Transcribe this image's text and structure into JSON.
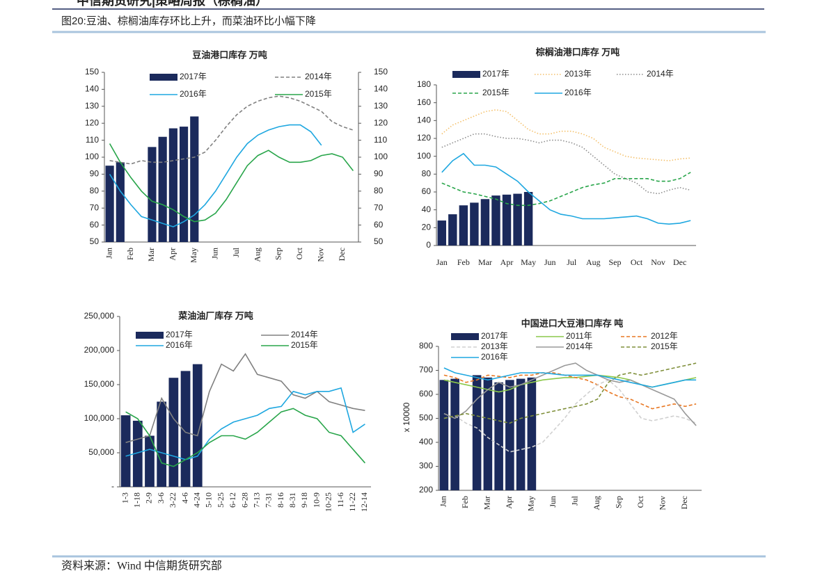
{
  "header": "中信期货研究|策略周报（棕榈油）",
  "caption": "图20:豆油、棕榈油库存环比上升，而菜油环比小幅下降",
  "source": "资料来源：Wind 中信期货研究部",
  "chart_data": [
    {
      "type": "bar-line",
      "title": "豆油港口库存 万吨",
      "categories": [
        "Jan",
        null,
        "Feb",
        null,
        "Mar",
        null,
        "Apr",
        null,
        "May",
        null,
        "Jun",
        null,
        "Jul",
        null,
        "Aug",
        null,
        "Sep",
        null,
        "Oct",
        null,
        "Nov",
        null,
        "Dec",
        null
      ],
      "ylim": [
        50,
        150
      ],
      "yticks": [
        50,
        60,
        70,
        80,
        90,
        100,
        110,
        120,
        130,
        140,
        150
      ],
      "y2lim": [
        50,
        150
      ],
      "y2ticks": [
        50,
        60,
        70,
        80,
        90,
        100,
        110,
        120,
        130,
        140,
        150
      ],
      "series": [
        {
          "name": "2017年",
          "type": "bar",
          "color": "#1b2a5c",
          "values": [
            95,
            97,
            null,
            null,
            106,
            112,
            117,
            118,
            124,
            null,
            null,
            null,
            null,
            null,
            null,
            null,
            null,
            null,
            null,
            null,
            null,
            null,
            null,
            null
          ]
        },
        {
          "name": "2014年",
          "type": "line",
          "dash": "dashed",
          "color": "#808080",
          "values": [
            98,
            97,
            96,
            98,
            97,
            97,
            98,
            99,
            100,
            103,
            110,
            118,
            125,
            130,
            133,
            135,
            136,
            135,
            133,
            130,
            127,
            121,
            118,
            116
          ]
        },
        {
          "name": "2016年",
          "type": "line",
          "dash": "solid",
          "color": "#1ea7e0",
          "values": [
            90,
            80,
            72,
            65,
            63,
            61,
            59,
            62,
            66,
            72,
            80,
            90,
            100,
            108,
            113,
            116,
            118,
            119,
            119,
            115,
            107,
            null,
            null,
            null
          ]
        },
        {
          "name": "2015年",
          "type": "line",
          "dash": "solid",
          "color": "#28a54a",
          "values": [
            108,
            97,
            88,
            80,
            74,
            72,
            69,
            65,
            62,
            63,
            67,
            75,
            85,
            95,
            101,
            104,
            100,
            97,
            97,
            98,
            101,
            102,
            100,
            92
          ]
        }
      ]
    },
    {
      "type": "bar-line",
      "title": "棕榈油港口库存 万吨",
      "categories": [
        "Jan",
        null,
        "Feb",
        null,
        "Mar",
        null,
        "Apr",
        null,
        "May",
        null,
        "Jun",
        null,
        "Jul",
        null,
        "Aug",
        null,
        "Sep",
        null,
        "Oct",
        null,
        "Nov",
        null,
        "Dec",
        null
      ],
      "ylim": [
        0,
        180
      ],
      "yticks": [
        0,
        20,
        40,
        60,
        80,
        100,
        120,
        140,
        160,
        180
      ],
      "series": [
        {
          "name": "2017年",
          "type": "bar",
          "color": "#1b2a5c",
          "values": [
            28,
            35,
            45,
            48,
            52,
            56,
            57,
            58,
            60,
            null,
            null,
            null,
            null,
            null,
            null,
            null,
            null,
            null,
            null,
            null,
            null,
            null,
            null,
            null
          ]
        },
        {
          "name": "2013年",
          "type": "line",
          "dash": "dotted",
          "color": "#f4c06a",
          "values": [
            125,
            135,
            140,
            145,
            150,
            152,
            150,
            140,
            130,
            125,
            125,
            128,
            128,
            125,
            120,
            110,
            105,
            100,
            98,
            97,
            96,
            95,
            97,
            98
          ]
        },
        {
          "name": "2014年",
          "type": "line",
          "dash": "dotted",
          "color": "#8c8c8c",
          "values": [
            110,
            115,
            120,
            125,
            125,
            122,
            120,
            120,
            118,
            115,
            118,
            118,
            115,
            110,
            100,
            90,
            80,
            75,
            70,
            60,
            58,
            62,
            65,
            62
          ]
        },
        {
          "name": "2015年",
          "type": "line",
          "dash": "dashed",
          "color": "#28a54a",
          "values": [
            70,
            65,
            60,
            58,
            55,
            52,
            47,
            45,
            45,
            47,
            50,
            55,
            60,
            65,
            68,
            70,
            75,
            75,
            75,
            75,
            72,
            72,
            75,
            82
          ]
        },
        {
          "name": "2016年",
          "type": "line",
          "dash": "solid",
          "color": "#1ea7e0",
          "values": [
            82,
            95,
            103,
            90,
            90,
            88,
            80,
            72,
            60,
            50,
            40,
            35,
            33,
            30,
            30,
            30,
            31,
            32,
            33,
            30,
            25,
            24,
            25,
            28
          ]
        }
      ]
    },
    {
      "type": "bar-line",
      "title": "菜油油厂库存 万吨",
      "categories": [
        "1-3",
        "1-18",
        "2-9",
        "3-6",
        "3-22",
        "4-6",
        "4-24",
        "5-10",
        "5-25",
        "6-12",
        "6-28",
        "7-13",
        "7-31",
        "8-16",
        "8-31",
        "9-18",
        "10-9",
        "10-25",
        "11-6",
        "11-22",
        "12-14"
      ],
      "ylim": [
        0,
        250000
      ],
      "yticks": [
        {
          "value": 0,
          "label": "-"
        },
        {
          "value": 50000,
          "label": "50,000"
        },
        {
          "value": 100000,
          "label": "100,000"
        },
        {
          "value": 150000,
          "label": "150,000"
        },
        {
          "value": 200000,
          "label": "200,000"
        },
        {
          "value": 250000,
          "label": "250,000"
        }
      ],
      "series": [
        {
          "name": "2017年",
          "type": "bar",
          "color": "#1b2a5c",
          "values": [
            105000,
            97000,
            75000,
            125000,
            160000,
            170000,
            180000,
            null,
            null,
            null,
            null,
            null,
            null,
            null,
            null,
            null,
            null,
            null,
            null,
            null,
            null
          ]
        },
        {
          "name": "2014年",
          "type": "line",
          "dash": "solid",
          "color": "#808080",
          "values": [
            65000,
            70000,
            75000,
            130000,
            100000,
            80000,
            75000,
            140000,
            180000,
            170000,
            195000,
            165000,
            160000,
            155000,
            135000,
            130000,
            140000,
            125000,
            120000,
            115000,
            112000
          ]
        },
        {
          "name": "2016年",
          "type": "line",
          "dash": "solid",
          "color": "#1ea7e0",
          "values": [
            45000,
            50000,
            55000,
            50000,
            45000,
            40000,
            45000,
            70000,
            85000,
            95000,
            100000,
            105000,
            115000,
            118000,
            140000,
            135000,
            140000,
            140000,
            145000,
            80000,
            92000
          ]
        },
        {
          "name": "2015年",
          "type": "line",
          "dash": "solid",
          "color": "#28a54a",
          "values": [
            110000,
            100000,
            75000,
            35000,
            30000,
            40000,
            50000,
            65000,
            75000,
            75000,
            70000,
            80000,
            95000,
            110000,
            115000,
            105000,
            100000,
            80000,
            75000,
            55000,
            35000
          ]
        }
      ]
    },
    {
      "type": "bar-line",
      "title": "中国进口大豆港口库存 吨",
      "y_label": "x 10000",
      "categories": [
        "Jan",
        null,
        "Feb",
        null,
        "Mar",
        null,
        "Apr",
        null,
        "May",
        null,
        "Jun",
        null,
        "Jul",
        null,
        "Aug",
        null,
        "Sep",
        null,
        "Oct",
        null,
        "Nov",
        null,
        "Dec",
        null
      ],
      "ylim": [
        200,
        800
      ],
      "yticks": [
        200,
        300,
        400,
        500,
        600,
        700,
        800
      ],
      "series": [
        {
          "name": "2017年",
          "type": "bar",
          "color": "#1b2a5c",
          "values": [
            660,
            665,
            null,
            680,
            670,
            650,
            660,
            665,
            670,
            null,
            null,
            null,
            null,
            null,
            null,
            null,
            null,
            null,
            null,
            null,
            null,
            null,
            null,
            null
          ]
        },
        {
          "name": "2011年",
          "type": "line",
          "dash": "solid",
          "color": "#8cc84b",
          "values": [
            660,
            650,
            640,
            630,
            620,
            610,
            620,
            640,
            650,
            660,
            665,
            670,
            670,
            675,
            680,
            675,
            670,
            660,
            640,
            630,
            640,
            650,
            660,
            670
          ]
        },
        {
          "name": "2012年",
          "type": "line",
          "dash": "dashed",
          "color": "#e87722",
          "values": [
            680,
            670,
            650,
            660,
            680,
            675,
            670,
            680,
            680,
            690,
            690,
            680,
            670,
            660,
            640,
            610,
            590,
            580,
            560,
            540,
            550,
            560,
            550,
            560
          ]
        },
        {
          "name": "2013年",
          "type": "line",
          "dash": "dashed",
          "color": "#d0d0d0",
          "values": [
            500,
            510,
            480,
            460,
            420,
            390,
            360,
            370,
            380,
            400,
            450,
            500,
            560,
            600,
            640,
            660,
            620,
            560,
            500,
            490,
            500,
            510,
            500,
            480
          ]
        },
        {
          "name": "2014年",
          "type": "line",
          "dash": "solid",
          "color": "#999999",
          "values": [
            520,
            500,
            530,
            580,
            620,
            650,
            630,
            640,
            660,
            680,
            700,
            720,
            730,
            700,
            680,
            660,
            650,
            660,
            640,
            620,
            600,
            580,
            520,
            470
          ]
        },
        {
          "name": "2015年",
          "type": "line",
          "dash": "dashed",
          "color": "#7f8f3a",
          "values": [
            500,
            510,
            520,
            510,
            500,
            490,
            480,
            500,
            510,
            520,
            530,
            540,
            550,
            560,
            580,
            650,
            680,
            690,
            680,
            690,
            700,
            710,
            720,
            730
          ]
        },
        {
          "name": "2016年",
          "type": "line",
          "dash": "solid",
          "color": "#1ea7e0",
          "values": [
            710,
            690,
            680,
            670,
            660,
            670,
            680,
            690,
            690,
            690,
            685,
            680,
            680,
            680,
            680,
            670,
            660,
            650,
            640,
            630,
            640,
            650,
            660,
            660
          ]
        }
      ]
    }
  ]
}
